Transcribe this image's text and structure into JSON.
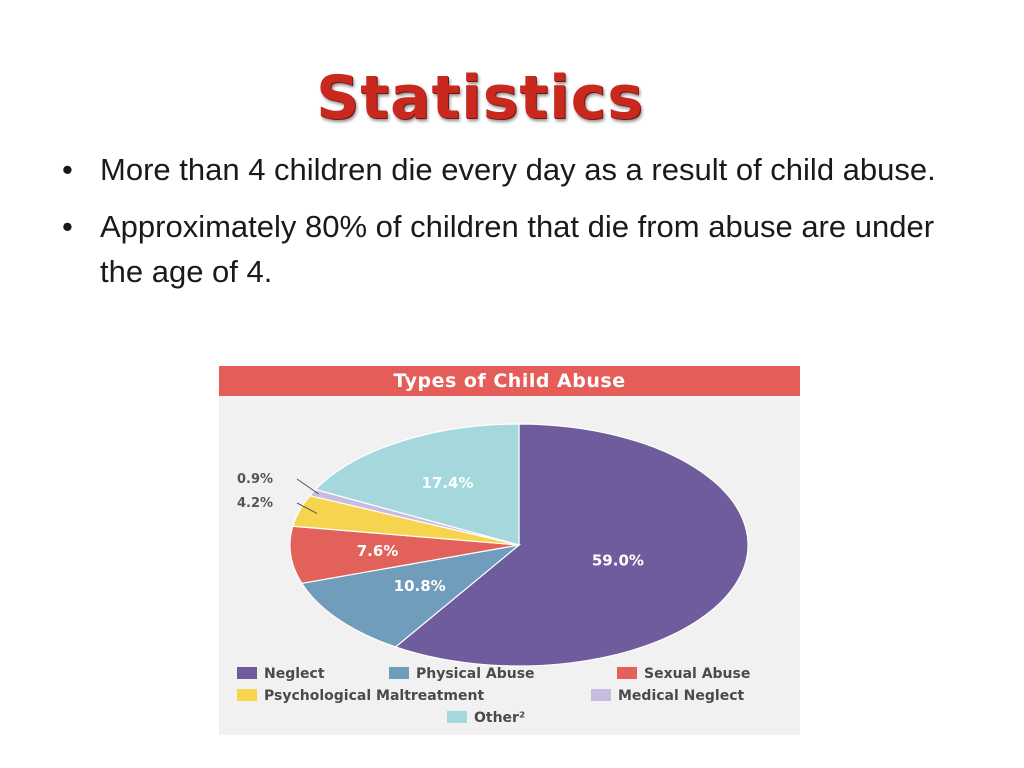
{
  "slide": {
    "title": "Statistics",
    "bullets": [
      "More than 4 children die every day as a result of child abuse.",
      "Approximately 80% of children that die from abuse are under the age of 4."
    ],
    "bullet_glyph": "•"
  },
  "colors": {
    "title_red": "#c8281e",
    "header_red": "#e55d58",
    "panel_bg": "#f1f1f1"
  },
  "chart_data": {
    "type": "pie",
    "title": "Types of Child Abuse",
    "start": "top, clockwise",
    "slices": [
      {
        "name": "Neglect",
        "value": 59.0,
        "label": "59.0%",
        "color": "#6f5c9c"
      },
      {
        "name": "Physical Abuse",
        "value": 10.8,
        "label": "10.8%",
        "color": "#6f9dbb"
      },
      {
        "name": "Sexual Abuse",
        "value": 7.6,
        "label": "7.6%",
        "color": "#e2625b"
      },
      {
        "name": "Psychological Maltreatment",
        "value": 4.2,
        "label": "4.2%",
        "color": "#f7d44e"
      },
      {
        "name": "Medical Neglect",
        "value": 0.9,
        "label": "0.9%",
        "color": "#c9bce0"
      },
      {
        "name": "Other²",
        "value": 17.4,
        "label": "17.4%",
        "color": "#a4d8dc"
      }
    ],
    "legend": {
      "placement": "bottom",
      "entries": [
        "Neglect",
        "Physical Abuse",
        "Sexual Abuse",
        "Psychological Maltreatment",
        "Medical Neglect",
        "Other²"
      ]
    }
  }
}
